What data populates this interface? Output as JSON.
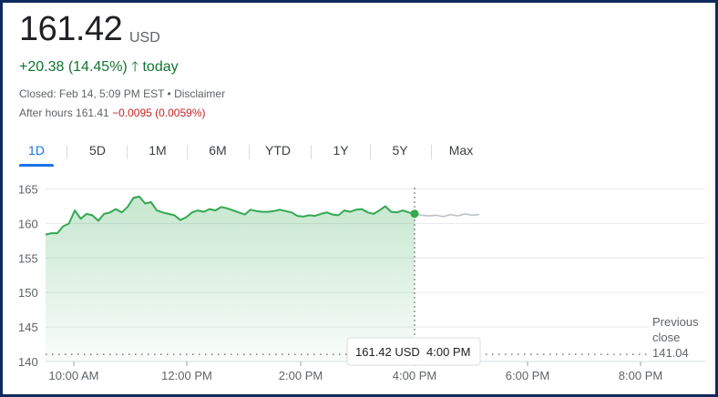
{
  "quote": {
    "price": "161.42",
    "currency": "USD",
    "change": "+20.38 (14.45%)",
    "change_arrow": "🡑",
    "change_period": "today",
    "closed_text": "Closed: Feb 14, 5:09 PM EST • Disclaimer",
    "after_hours_label": "After hours 161.41",
    "after_hours_change": "−0.0095 (0.0059%)"
  },
  "tabs": [
    "1D",
    "5D",
    "1M",
    "6M",
    "YTD",
    "1Y",
    "5Y",
    "Max"
  ],
  "active_tab": "1D",
  "colors": {
    "up": "#137333",
    "line": "#34a853",
    "after_line": "#bdc1c6",
    "accent": "#1a73e8",
    "negative": "#c5221f"
  },
  "chart_data": {
    "type": "area",
    "x_ticks": [
      "10:00 AM",
      "12:00 PM",
      "2:00 PM",
      "4:00 PM",
      "6:00 PM",
      "8:00 PM"
    ],
    "y_ticks": [
      165,
      160,
      155,
      150,
      145,
      140
    ],
    "ylim": [
      140,
      166
    ],
    "previous_close": 141.04,
    "previous_close_label": [
      "Previous",
      "close",
      "141.04"
    ],
    "tooltip": {
      "price": "161.42 USD",
      "time": "4:00 PM"
    },
    "series": [
      {
        "values": [
          158.4,
          158.6,
          158.6,
          159.6,
          160.0,
          161.9,
          160.7,
          161.4,
          161.2,
          160.4,
          161.4,
          161.6,
          162.1,
          161.6,
          162.4,
          163.7,
          163.9,
          162.9,
          163.1,
          161.9,
          161.6,
          161.4,
          161.2,
          160.5,
          160.9,
          161.6,
          161.9,
          161.7,
          162.1,
          161.9,
          162.4,
          162.2,
          161.9,
          161.6,
          161.3,
          162.0,
          161.8,
          161.7,
          161.7,
          161.8,
          162.0,
          161.8,
          161.6,
          161.1,
          161.0,
          161.2,
          161.1,
          161.4,
          161.6,
          161.3,
          161.2,
          161.9,
          161.7,
          162.0,
          162.1,
          161.6,
          161.4,
          161.9,
          162.5,
          161.7,
          161.6,
          161.9,
          161.6,
          161.42
        ]
      },
      {
        "values": [
          161.41,
          161.2,
          161.1,
          161.2,
          161.0,
          161.3,
          161.1,
          161.4,
          161.2,
          161.3
        ]
      }
    ]
  }
}
